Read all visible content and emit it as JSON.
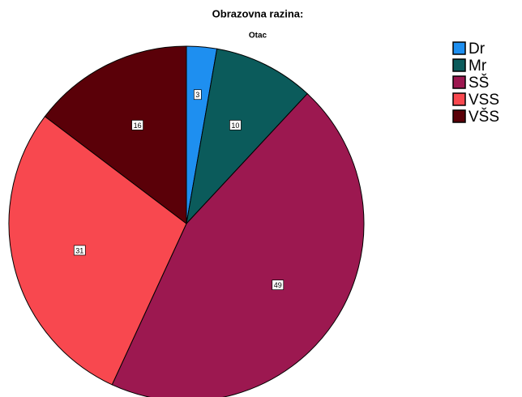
{
  "chart_data": {
    "type": "pie",
    "title": "Obrazovna razina:",
    "subtitle": "Otac",
    "categories": [
      "Dr",
      "Mr",
      "SŠ",
      "VSS",
      "VŠS"
    ],
    "values": [
      3,
      10,
      49,
      31,
      16
    ],
    "colors": [
      "#1e8ff0",
      "#0b5b5b",
      "#9c1850",
      "#f8484f",
      "#5a0008"
    ],
    "legend": "right"
  }
}
